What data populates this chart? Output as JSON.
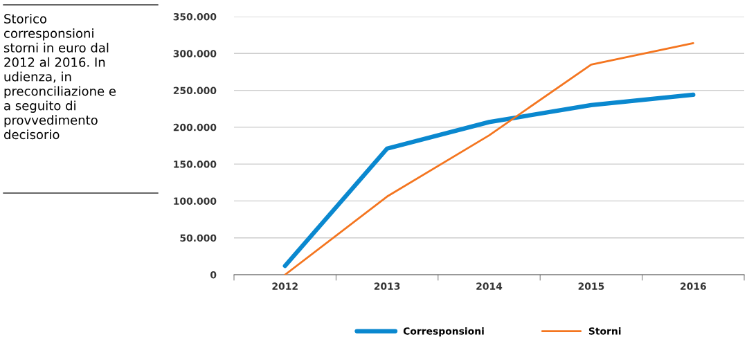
{
  "chart_data": {
    "type": "line",
    "title": "Storico\ncorresponsioni\nstorni in euro dal\n2012 al 2016. In\nudienza, in\npreconciliazione e\na seguito di\nprovvedimento\ndecisorio",
    "categories": [
      "2012",
      "2013",
      "2014",
      "2015",
      "2016"
    ],
    "series": [
      {
        "name": "Corresponsioni",
        "color": "#0a88cf",
        "values": [
          12000,
          171000,
          207000,
          230000,
          244000
        ]
      },
      {
        "name": "Storni",
        "color": "#f4751f",
        "values": [
          0,
          106000,
          189000,
          285000,
          314000
        ]
      }
    ],
    "ylim": [
      0,
      350000
    ],
    "yticks": [
      {
        "value": 0,
        "label": "0"
      },
      {
        "value": 50000,
        "label": "50.000"
      },
      {
        "value": 100000,
        "label": "100.000"
      },
      {
        "value": 150000,
        "label": "150.000"
      },
      {
        "value": 200000,
        "label": "200.000"
      },
      {
        "value": 250000,
        "label": "250.000"
      },
      {
        "value": 300000,
        "label": "300.000"
      },
      {
        "value": 350000,
        "label": "350.000"
      }
    ],
    "grid": "y",
    "legend": "bottom",
    "marker": "none",
    "line_style": "solid"
  }
}
